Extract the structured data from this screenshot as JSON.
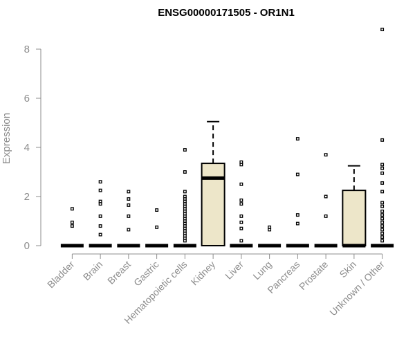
{
  "chart_data": {
    "type": "boxplot",
    "title": "ENSG00000171505 - OR1N1",
    "xlabel": "",
    "ylabel": "Expression",
    "ylim": [
      0,
      8.8
    ],
    "yticks": [
      0,
      2,
      4,
      6,
      8
    ],
    "grid": false,
    "box_fill": "#ede6c9",
    "categories": [
      "Bladder",
      "Brain",
      "Breast",
      "Gastric",
      "Hematopoietic cells",
      "Kidney",
      "Liver",
      "Lung",
      "Pancreas",
      "Prostate",
      "Skin",
      "Unknown / Other"
    ],
    "boxes": [
      {
        "q1": 0,
        "median": 0,
        "q3": 0,
        "whisker_low": 0,
        "whisker_high": 0,
        "outliers": [
          0.8,
          0.95,
          1.5
        ]
      },
      {
        "q1": 0,
        "median": 0,
        "q3": 0,
        "whisker_low": 0,
        "whisker_high": 0,
        "outliers": [
          0.45,
          0.8,
          1.2,
          1.7,
          1.8,
          2.25,
          2.6
        ]
      },
      {
        "q1": 0,
        "median": 0,
        "q3": 0,
        "whisker_low": 0,
        "whisker_high": 0,
        "outliers": [
          0.65,
          1.2,
          1.65,
          1.9,
          2.2
        ]
      },
      {
        "q1": 0,
        "median": 0,
        "q3": 0,
        "whisker_low": 0,
        "whisker_high": 0,
        "outliers": [
          0.75,
          1.45
        ]
      },
      {
        "q1": 0,
        "median": 0,
        "q3": 0,
        "whisker_low": 0,
        "whisker_high": 0,
        "outliers": [
          0.2,
          0.3,
          0.4,
          0.5,
          0.6,
          0.7,
          0.8,
          0.9,
          1.0,
          1.1,
          1.2,
          1.3,
          1.4,
          1.5,
          1.6,
          1.7,
          1.8,
          1.9,
          2.0,
          2.2,
          3.0,
          3.9
        ]
      },
      {
        "q1": 0,
        "median": 2.75,
        "q3": 3.35,
        "whisker_low": 0,
        "whisker_high": 5.05,
        "outliers": []
      },
      {
        "q1": 0,
        "median": 0,
        "q3": 0,
        "whisker_low": 0,
        "whisker_high": 0,
        "outliers": [
          0.2,
          0.7,
          0.95,
          1.2,
          1.7,
          1.85,
          2.5,
          3.3,
          3.4
        ]
      },
      {
        "q1": 0,
        "median": 0,
        "q3": 0,
        "whisker_low": 0,
        "whisker_high": 0,
        "outliers": [
          0.65,
          0.75
        ]
      },
      {
        "q1": 0,
        "median": 0,
        "q3": 0,
        "whisker_low": 0,
        "whisker_high": 0,
        "outliers": [
          0.9,
          1.25,
          2.9,
          4.35
        ]
      },
      {
        "q1": 0,
        "median": 0,
        "q3": 0,
        "whisker_low": 0,
        "whisker_high": 0,
        "outliers": [
          1.2,
          2.0,
          3.7
        ]
      },
      {
        "q1": 0,
        "median": 0,
        "q3": 2.25,
        "whisker_low": 0,
        "whisker_high": 3.25,
        "outliers": []
      },
      {
        "q1": 0,
        "median": 0,
        "q3": 0,
        "whisker_low": 0,
        "whisker_high": 0,
        "outliers": [
          0.2,
          0.35,
          0.5,
          0.65,
          0.8,
          0.95,
          1.1,
          1.25,
          1.4,
          1.6,
          1.75,
          2.2,
          2.55,
          2.95,
          3.15,
          3.3,
          4.3,
          8.8
        ]
      }
    ]
  }
}
